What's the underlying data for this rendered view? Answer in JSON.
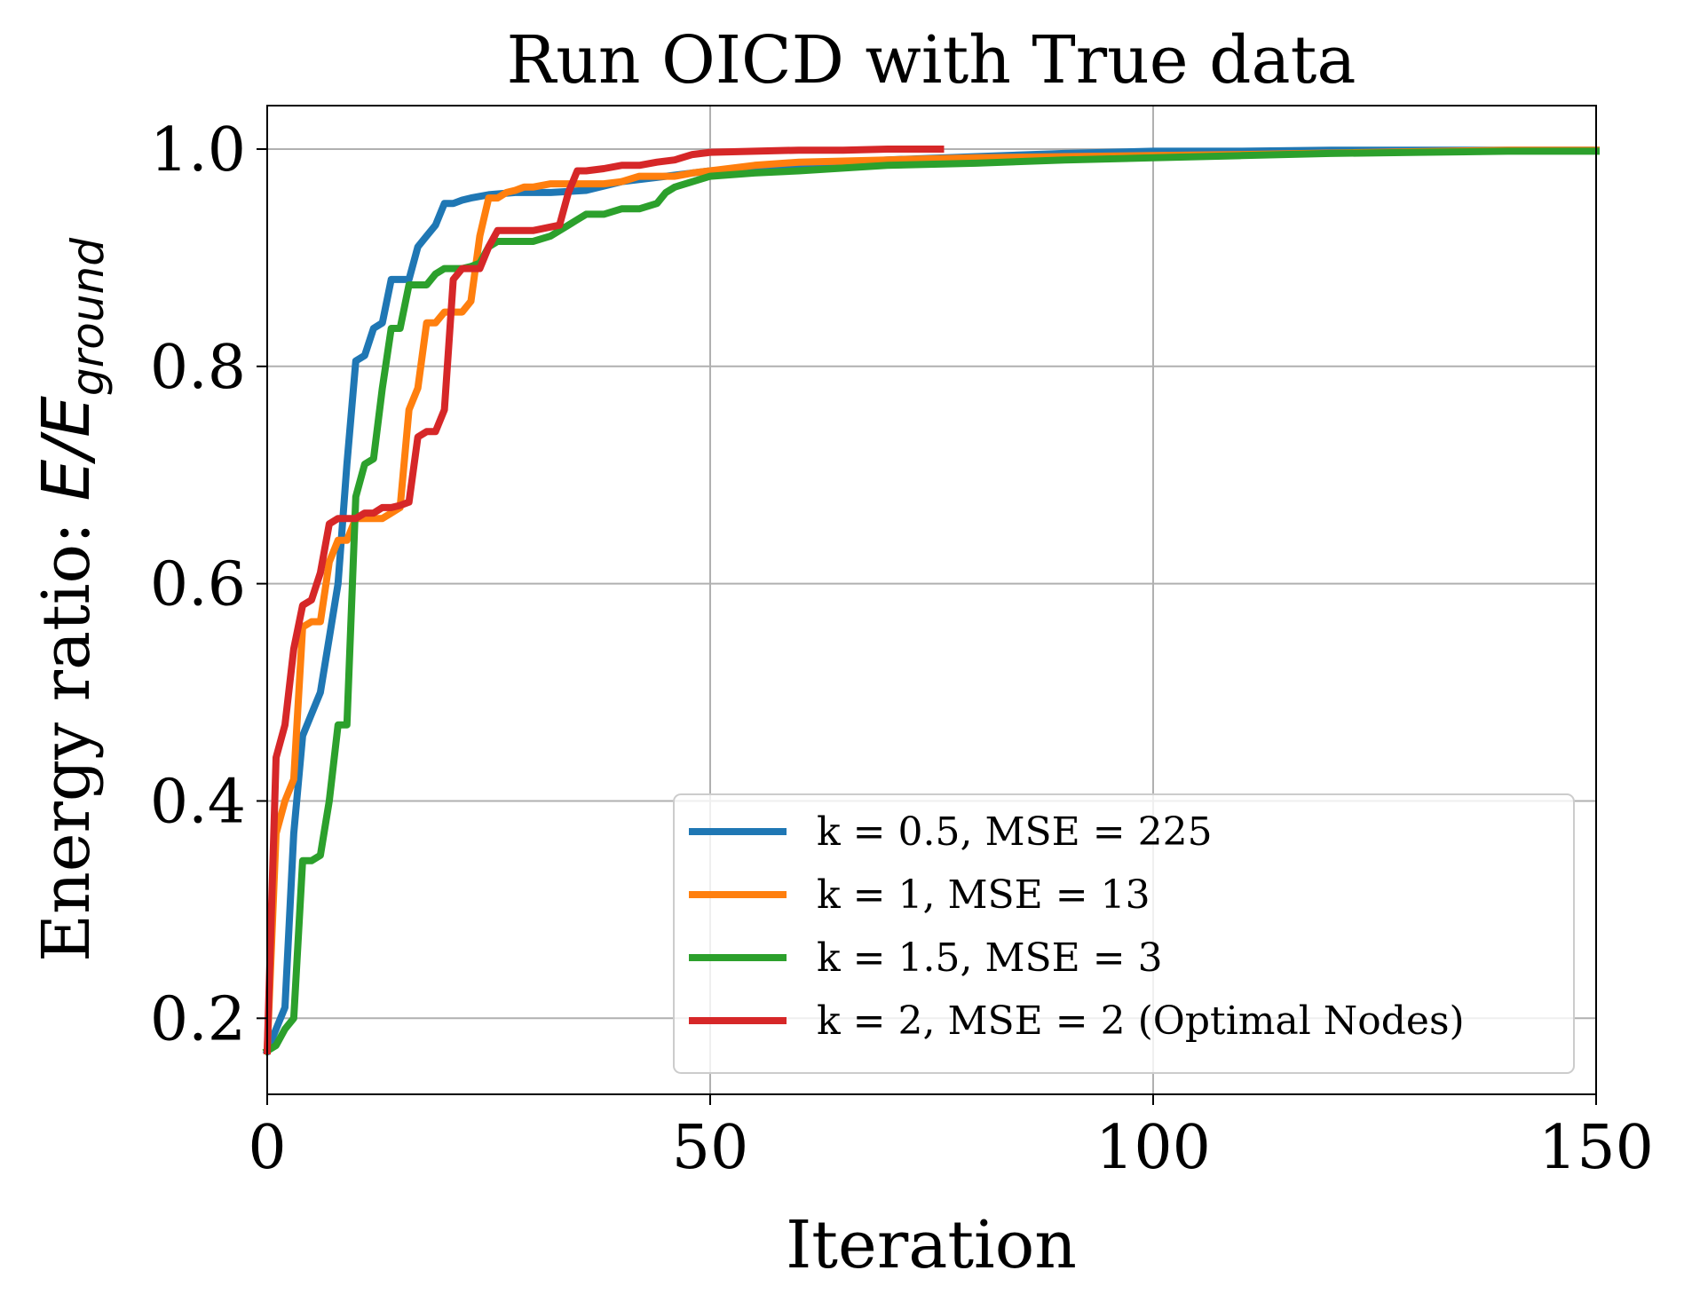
{
  "chart_data": {
    "type": "line",
    "title": "Run OICD with True data",
    "xlabel": "Iteration",
    "ylabel_prefix": "Energy ratio: ",
    "ylabel_math": "E/E",
    "ylabel_subscript": "ground",
    "xlim": [
      0,
      150
    ],
    "ylim": [
      0.13,
      1.04
    ],
    "xticks": [
      0,
      50,
      100,
      150
    ],
    "xtick_labels": [
      "0",
      "50",
      "100",
      "150"
    ],
    "yticks": [
      0.2,
      0.4,
      0.6,
      0.8,
      1.0
    ],
    "ytick_labels": [
      "0.2",
      "0.4",
      "0.6",
      "0.8",
      "1.0"
    ],
    "grid": true,
    "legend_position": "lower-right",
    "series": [
      {
        "name": "k = 0.5, MSE = 225",
        "color": "#1f77b4",
        "x": [
          0,
          1,
          2,
          3,
          4,
          5,
          6,
          7,
          8,
          9,
          10,
          11,
          12,
          13,
          14,
          15,
          16,
          17,
          18,
          19,
          20,
          21,
          22,
          23,
          25,
          28,
          32,
          36,
          40,
          45,
          50,
          60,
          70,
          80,
          90,
          100,
          110,
          120,
          130,
          140,
          150
        ],
        "y": [
          0.17,
          0.19,
          0.21,
          0.37,
          0.46,
          0.48,
          0.5,
          0.55,
          0.6,
          0.71,
          0.805,
          0.81,
          0.835,
          0.84,
          0.88,
          0.88,
          0.88,
          0.91,
          0.92,
          0.93,
          0.95,
          0.95,
          0.953,
          0.955,
          0.958,
          0.96,
          0.96,
          0.962,
          0.97,
          0.975,
          0.98,
          0.985,
          0.99,
          0.993,
          0.996,
          0.998,
          0.998,
          0.999,
          0.999,
          0.999,
          0.999
        ]
      },
      {
        "name": "k = 1, MSE = 13",
        "color": "#ff7f0e",
        "x": [
          0,
          1,
          2,
          3,
          4,
          5,
          6,
          7,
          8,
          9,
          10,
          11,
          12,
          13,
          14,
          15,
          16,
          17,
          18,
          19,
          20,
          21,
          22,
          23,
          24,
          25,
          26,
          27,
          28,
          29,
          30,
          32,
          34,
          36,
          38,
          40,
          42,
          44,
          46,
          48,
          50,
          55,
          60,
          70,
          80,
          90,
          100,
          110,
          125,
          140,
          150
        ],
        "y": [
          0.17,
          0.37,
          0.4,
          0.42,
          0.56,
          0.565,
          0.565,
          0.62,
          0.64,
          0.64,
          0.66,
          0.66,
          0.66,
          0.66,
          0.665,
          0.67,
          0.76,
          0.78,
          0.84,
          0.84,
          0.85,
          0.85,
          0.85,
          0.86,
          0.92,
          0.955,
          0.955,
          0.96,
          0.962,
          0.965,
          0.965,
          0.968,
          0.968,
          0.968,
          0.968,
          0.97,
          0.975,
          0.975,
          0.975,
          0.978,
          0.98,
          0.985,
          0.988,
          0.99,
          0.992,
          0.993,
          0.994,
          0.995,
          0.997,
          0.999,
          0.999
        ]
      },
      {
        "name": "k = 1.5, MSE = 3",
        "color": "#2ca02c",
        "x": [
          0,
          1,
          2,
          3,
          4,
          5,
          6,
          7,
          8,
          9,
          10,
          11,
          12,
          13,
          14,
          15,
          16,
          17,
          18,
          19,
          20,
          21,
          22,
          23,
          24,
          25,
          26,
          28,
          30,
          32,
          34,
          35,
          36,
          38,
          40,
          42,
          44,
          45,
          46,
          48,
          50,
          55,
          60,
          70,
          80,
          90,
          100,
          110,
          120,
          130,
          140,
          150
        ],
        "y": [
          0.17,
          0.175,
          0.19,
          0.2,
          0.345,
          0.345,
          0.35,
          0.4,
          0.47,
          0.47,
          0.68,
          0.71,
          0.715,
          0.78,
          0.835,
          0.835,
          0.875,
          0.875,
          0.875,
          0.885,
          0.89,
          0.89,
          0.89,
          0.892,
          0.895,
          0.91,
          0.915,
          0.915,
          0.915,
          0.92,
          0.93,
          0.935,
          0.94,
          0.94,
          0.945,
          0.945,
          0.95,
          0.96,
          0.965,
          0.97,
          0.975,
          0.978,
          0.98,
          0.985,
          0.987,
          0.99,
          0.992,
          0.994,
          0.996,
          0.997,
          0.998,
          0.998
        ]
      },
      {
        "name": "k = 2, MSE = 2 (Optimal Nodes)",
        "color": "#d62728",
        "x": [
          0,
          1,
          2,
          3,
          4,
          5,
          6,
          7,
          8,
          9,
          10,
          11,
          12,
          13,
          14,
          15,
          16,
          17,
          18,
          19,
          20,
          21,
          22,
          23,
          24,
          25,
          26,
          28,
          30,
          33,
          34,
          35,
          36,
          38,
          40,
          42,
          44,
          46,
          48,
          50,
          55,
          60,
          65,
          70,
          76
        ],
        "y": [
          0.17,
          0.44,
          0.47,
          0.54,
          0.58,
          0.585,
          0.61,
          0.655,
          0.66,
          0.66,
          0.66,
          0.665,
          0.665,
          0.67,
          0.67,
          0.672,
          0.675,
          0.735,
          0.74,
          0.74,
          0.76,
          0.88,
          0.89,
          0.89,
          0.89,
          0.91,
          0.925,
          0.925,
          0.925,
          0.93,
          0.96,
          0.98,
          0.98,
          0.982,
          0.985,
          0.985,
          0.988,
          0.99,
          0.995,
          0.997,
          0.998,
          0.999,
          0.999,
          1.0,
          1.0
        ]
      }
    ]
  }
}
